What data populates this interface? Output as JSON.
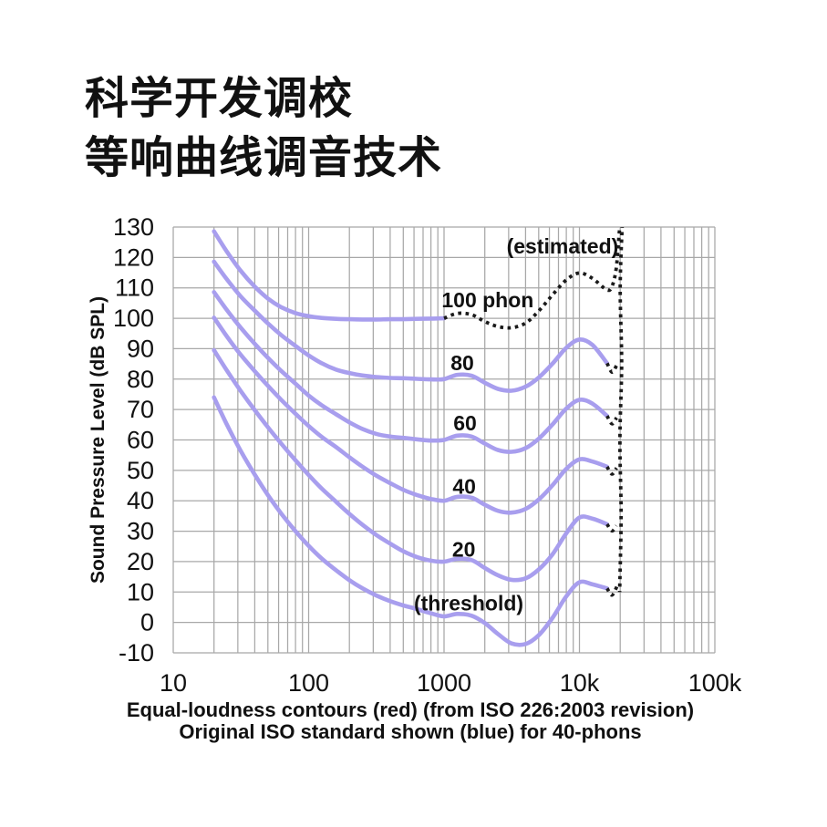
{
  "title": {
    "line1": "科学开发调校",
    "line2": "等响曲线调音技术"
  },
  "chart_data": {
    "type": "line",
    "x_axis": {
      "scale": "log",
      "unit": "Hz",
      "min": 10,
      "max": 100000,
      "ticks": [
        {
          "f": 10,
          "label": "10"
        },
        {
          "f": 100,
          "label": "100"
        },
        {
          "f": 1000,
          "label": "1000"
        },
        {
          "f": 10000,
          "label": "10k"
        },
        {
          "f": 100000,
          "label": "100k"
        }
      ]
    },
    "y_axis": {
      "label": "Sound Pressure Level (dB SPL)",
      "min": -10,
      "max": 130,
      "step": 10
    },
    "grid": true,
    "colors": {
      "contour": "#a89eee",
      "estimated": "#1a1a1a",
      "grid": "#a8a8a8",
      "text": "#111111"
    },
    "series": [
      {
        "name": "100-phon-solid",
        "style": "solid",
        "points": [
          [
            20,
            128.6
          ],
          [
            25,
            121.8
          ],
          [
            31.5,
            115.6
          ],
          [
            40,
            110.4
          ],
          [
            50,
            106.5
          ],
          [
            63,
            103.6
          ],
          [
            80,
            101.7
          ],
          [
            100,
            100.7
          ],
          [
            125,
            100.1
          ],
          [
            160,
            99.8
          ],
          [
            200,
            99.7
          ],
          [
            250,
            99.6
          ],
          [
            315,
            99.6
          ],
          [
            400,
            99.7
          ],
          [
            500,
            99.7
          ],
          [
            630,
            99.8
          ],
          [
            800,
            99.9
          ],
          [
            1000,
            100
          ]
        ]
      },
      {
        "name": "100-phon-estimated",
        "style": "dotted",
        "points": [
          [
            1000,
            100
          ],
          [
            1250,
            101.6
          ],
          [
            1600,
            101.2
          ],
          [
            2000,
            98.9
          ],
          [
            2500,
            97.3
          ],
          [
            3150,
            96.9
          ],
          [
            4000,
            98.4
          ],
          [
            5000,
            102.4
          ],
          [
            6300,
            107.6
          ],
          [
            8000,
            112.6
          ],
          [
            10000,
            114.9
          ],
          [
            12500,
            113.1
          ],
          [
            16000,
            109.3
          ],
          [
            17500,
            110.8
          ],
          [
            18700,
            116.5
          ],
          [
            19500,
            126
          ],
          [
            19900,
            130.8
          ]
        ]
      },
      {
        "name": "80-phon",
        "style": "solid",
        "points": [
          [
            20,
            118.6
          ],
          [
            25,
            112.7
          ],
          [
            31.5,
            107.2
          ],
          [
            40,
            102.5
          ],
          [
            50,
            98.3
          ],
          [
            63,
            94.4
          ],
          [
            80,
            90.9
          ],
          [
            100,
            87.8
          ],
          [
            125,
            85.2
          ],
          [
            160,
            83.1
          ],
          [
            200,
            82
          ],
          [
            250,
            81.2
          ],
          [
            315,
            80.7
          ],
          [
            400,
            80.4
          ],
          [
            500,
            80.3
          ],
          [
            630,
            80.1
          ],
          [
            800,
            79.9
          ],
          [
            1000,
            80
          ],
          [
            1250,
            81.4
          ],
          [
            1600,
            81.1
          ],
          [
            2000,
            78.8
          ],
          [
            2500,
            76.8
          ],
          [
            3150,
            76.2
          ],
          [
            4000,
            77.5
          ],
          [
            5000,
            80.5
          ],
          [
            6300,
            85
          ],
          [
            8000,
            90.3
          ],
          [
            10000,
            93
          ],
          [
            12500,
            91.2
          ],
          [
            16000,
            85.2
          ]
        ]
      },
      {
        "name": "80-phon-tail",
        "style": "dotted",
        "points": [
          [
            16000,
            85.2
          ],
          [
            17400,
            82.3
          ],
          [
            18800,
            84.5
          ]
        ]
      },
      {
        "name": "60-phon",
        "style": "solid",
        "points": [
          [
            20,
            108.6
          ],
          [
            25,
            102.6
          ],
          [
            31.5,
            96.9
          ],
          [
            40,
            91.6
          ],
          [
            50,
            87
          ],
          [
            63,
            82.6
          ],
          [
            80,
            78.5
          ],
          [
            100,
            74.6
          ],
          [
            125,
            71.4
          ],
          [
            160,
            68.4
          ],
          [
            200,
            65.8
          ],
          [
            250,
            63.6
          ],
          [
            315,
            62
          ],
          [
            400,
            61.1
          ],
          [
            500,
            60.7
          ],
          [
            630,
            60.2
          ],
          [
            800,
            59.8
          ],
          [
            1000,
            60
          ],
          [
            1250,
            61.4
          ],
          [
            1600,
            61.1
          ],
          [
            2000,
            58.8
          ],
          [
            2500,
            56.7
          ],
          [
            3150,
            56.1
          ],
          [
            4000,
            57.3
          ],
          [
            5000,
            60.4
          ],
          [
            6300,
            65
          ],
          [
            8000,
            70.3
          ],
          [
            10000,
            73.2
          ],
          [
            12500,
            71.9
          ],
          [
            16000,
            67.9
          ]
        ]
      },
      {
        "name": "60-phon-tail",
        "style": "dotted",
        "points": [
          [
            16000,
            67.9
          ],
          [
            17400,
            65.3
          ],
          [
            18800,
            67.3
          ]
        ]
      },
      {
        "name": "40-phon",
        "style": "solid",
        "points": [
          [
            20,
            100.2
          ],
          [
            25,
            93.9
          ],
          [
            31.5,
            88
          ],
          [
            40,
            82.6
          ],
          [
            50,
            77.8
          ],
          [
            63,
            73.1
          ],
          [
            80,
            68.6
          ],
          [
            100,
            64.6
          ],
          [
            125,
            61
          ],
          [
            160,
            57.6
          ],
          [
            200,
            54.3
          ],
          [
            250,
            51.2
          ],
          [
            315,
            48.3
          ],
          [
            400,
            45.8
          ],
          [
            500,
            43.6
          ],
          [
            630,
            41.9
          ],
          [
            800,
            40.6
          ],
          [
            1000,
            40
          ],
          [
            1250,
            41.3
          ],
          [
            1600,
            41
          ],
          [
            2000,
            38.7
          ],
          [
            2500,
            36.7
          ],
          [
            3150,
            36.1
          ],
          [
            4000,
            37.3
          ],
          [
            5000,
            40.4
          ],
          [
            6300,
            45
          ],
          [
            8000,
            50.5
          ],
          [
            10000,
            53.6
          ],
          [
            12500,
            52.9
          ],
          [
            16000,
            51.2
          ]
        ]
      },
      {
        "name": "40-phon-tail",
        "style": "dotted",
        "points": [
          [
            16000,
            51.2
          ],
          [
            17400,
            48.8
          ],
          [
            18800,
            50.8
          ]
        ]
      },
      {
        "name": "20-phon",
        "style": "solid",
        "points": [
          [
            20,
            89.5
          ],
          [
            25,
            82.7
          ],
          [
            31.5,
            76.1
          ],
          [
            40,
            69.8
          ],
          [
            50,
            64.2
          ],
          [
            63,
            58.7
          ],
          [
            80,
            53.3
          ],
          [
            100,
            48.5
          ],
          [
            125,
            44
          ],
          [
            160,
            39.6
          ],
          [
            200,
            35.7
          ],
          [
            250,
            32.1
          ],
          [
            315,
            28.8
          ],
          [
            400,
            25.9
          ],
          [
            500,
            23.4
          ],
          [
            630,
            21.5
          ],
          [
            800,
            20.3
          ],
          [
            1000,
            20
          ],
          [
            1250,
            20.9
          ],
          [
            1600,
            20.5
          ],
          [
            2000,
            17.9
          ],
          [
            2500,
            15.5
          ],
          [
            3150,
            14
          ],
          [
            4000,
            14.5
          ],
          [
            5000,
            17.4
          ],
          [
            6300,
            22.3
          ],
          [
            8000,
            29.3
          ],
          [
            10000,
            34.5
          ],
          [
            12500,
            34.1
          ],
          [
            16000,
            32.3
          ]
        ]
      },
      {
        "name": "20-phon-tail",
        "style": "dotted",
        "points": [
          [
            16000,
            32.3
          ],
          [
            17400,
            30.1
          ],
          [
            18800,
            31.8
          ]
        ]
      },
      {
        "name": "threshold",
        "style": "solid",
        "points": [
          [
            20,
            74
          ],
          [
            25,
            64.9
          ],
          [
            31.5,
            56.4
          ],
          [
            40,
            48.6
          ],
          [
            50,
            41.9
          ],
          [
            63,
            35.7
          ],
          [
            80,
            30
          ],
          [
            100,
            25.2
          ],
          [
            125,
            21
          ],
          [
            160,
            17.1
          ],
          [
            200,
            13.9
          ],
          [
            250,
            11.2
          ],
          [
            315,
            8.9
          ],
          [
            400,
            7
          ],
          [
            500,
            5.6
          ],
          [
            630,
            4.4
          ],
          [
            800,
            3
          ],
          [
            1000,
            2
          ],
          [
            1250,
            2.8
          ],
          [
            1600,
            2.2
          ],
          [
            2000,
            -0.2
          ],
          [
            2500,
            -3.8
          ],
          [
            3150,
            -6.9
          ],
          [
            4000,
            -7.1
          ],
          [
            5000,
            -4.2
          ],
          [
            6300,
            1.4
          ],
          [
            8000,
            8.6
          ],
          [
            10000,
            13.2
          ],
          [
            12500,
            12.5
          ],
          [
            16000,
            11.2
          ]
        ]
      },
      {
        "name": "threshold-tail",
        "style": "dotted",
        "points": [
          [
            16000,
            11.2
          ],
          [
            17400,
            9
          ],
          [
            19000,
            12
          ]
        ]
      },
      {
        "name": "upper-hearing-limit",
        "style": "dotted",
        "points": [
          [
            20700,
            130.8
          ],
          [
            20000,
            110
          ],
          [
            20500,
            85
          ],
          [
            19900,
            60
          ],
          [
            20300,
            35
          ],
          [
            19800,
            10
          ]
        ]
      }
    ],
    "labels": [
      {
        "name": "estimated",
        "text": "(estimated)",
        "f": 7500,
        "db": 123.1
      },
      {
        "name": "100-phon",
        "text": "100 phon",
        "f": 2100,
        "db": 105.4
      },
      {
        "name": "80-phon",
        "text": "80",
        "f": 1365,
        "db": 84.7
      },
      {
        "name": "60-phon",
        "text": "60",
        "f": 1430,
        "db": 64.9
      },
      {
        "name": "40-phon",
        "text": "40",
        "f": 1410,
        "db": 44.2
      },
      {
        "name": "20-phon",
        "text": "20",
        "f": 1400,
        "db": 23.5
      },
      {
        "name": "threshold",
        "text": "(threshold)",
        "f": 1520,
        "db": 5.8
      }
    ],
    "caption1": "Equal-loudness contours (red) (from ISO 226:2003 revision)",
    "caption2": "Original ISO standard shown (blue) for 40-phons"
  }
}
